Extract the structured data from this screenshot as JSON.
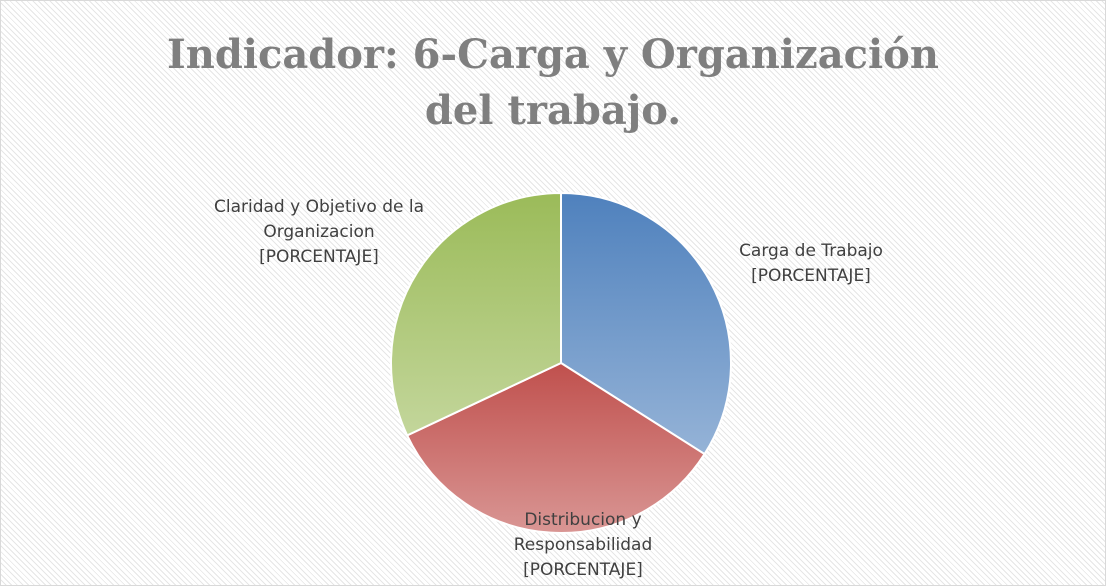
{
  "chart_data": {
    "type": "pie",
    "title": "Indicador: 6-Carga y Organización del trabajo.",
    "categories": [
      "Carga de Trabajo",
      "Distribucion y Responsabilidad",
      "Claridad y Objetivo de la Organizacion"
    ],
    "values": [
      34,
      34,
      32
    ],
    "value_labels": [
      "[PORCENTAJE]",
      "[PORCENTAJE]",
      "[PORCENTAJE]"
    ],
    "colors": [
      "#4f81bd",
      "#c0504d",
      "#9bbb59"
    ],
    "light_colors": [
      "#95b3d7",
      "#d99694",
      "#c3d69b"
    ]
  }
}
